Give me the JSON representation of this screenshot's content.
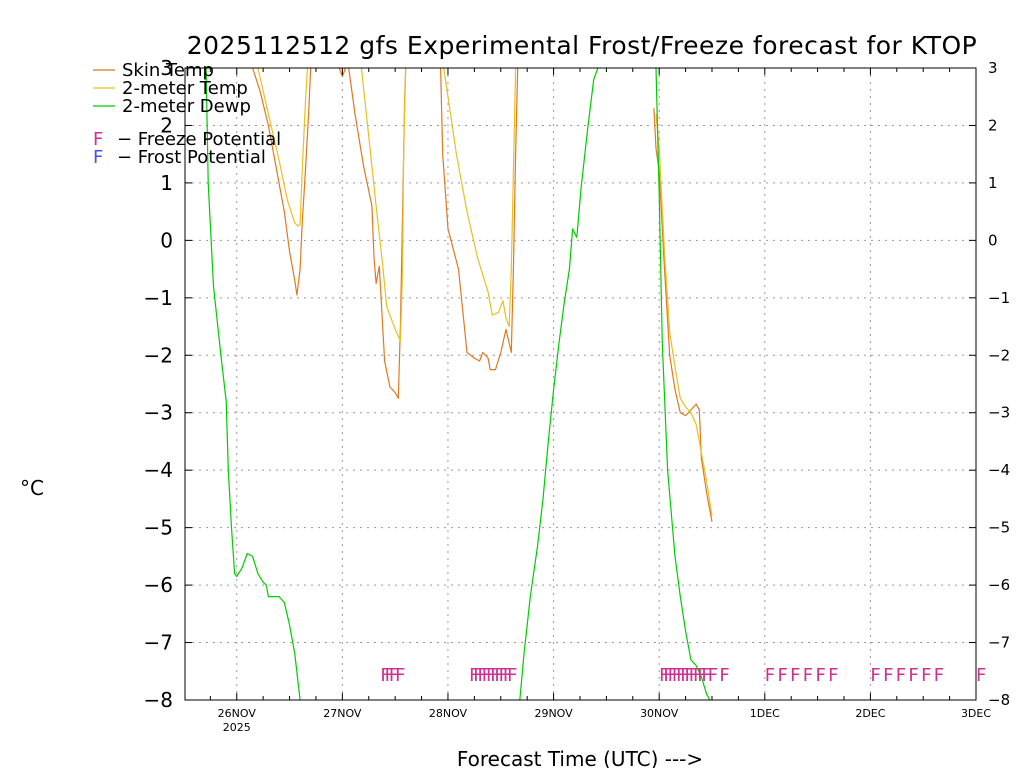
{
  "chart_data": {
    "type": "line",
    "title": "2025112512 gfs Experimental Frost/Freeze forecast for KTOP",
    "xlabel": "Forecast Time (UTC) --->",
    "ylabel": "°C",
    "ylim": [
      -8,
      3
    ],
    "xlim": [
      -0.49,
      7.0
    ],
    "y_ticks": [
      3,
      2,
      1,
      0,
      -1,
      -2,
      -3,
      -4,
      -5,
      -6,
      -7,
      -8
    ],
    "y_tick_labels": [
      "3",
      "2",
      "1",
      "0",
      "−1",
      "−2",
      "−3",
      "−4",
      "−5",
      "−6",
      "−7",
      "−8"
    ],
    "x_ticks": [
      {
        "x": 0,
        "label": "26NOV",
        "sublabel": "2025"
      },
      {
        "x": 1,
        "label": "27NOV"
      },
      {
        "x": 2,
        "label": "28NOV"
      },
      {
        "x": 3,
        "label": "29NOV"
      },
      {
        "x": 4,
        "label": "30NOV"
      },
      {
        "x": 5,
        "label": "1DEC"
      },
      {
        "x": 6,
        "label": "2DEC"
      },
      {
        "x": 7,
        "label": "3DEC"
      }
    ],
    "grid": true,
    "series": [
      {
        "name": "Skin Temp",
        "color": "#e07820",
        "segments": [
          [
            [
              0.15,
              3.0
            ],
            [
              0.22,
              2.6
            ],
            [
              0.3,
              2.0
            ],
            [
              0.38,
              1.2
            ],
            [
              0.45,
              0.5
            ],
            [
              0.5,
              -0.2
            ],
            [
              0.55,
              -0.7
            ],
            [
              0.57,
              -0.95
            ],
            [
              0.6,
              -0.5
            ],
            [
              0.62,
              0.3
            ],
            [
              0.65,
              1.2
            ],
            [
              0.68,
              2.2
            ],
            [
              0.7,
              3.0
            ]
          ],
          [
            [
              0.97,
              3.0
            ],
            [
              1.0,
              2.85
            ],
            [
              1.03,
              3.0
            ]
          ],
          [
            [
              1.06,
              3.0
            ],
            [
              1.12,
              2.2
            ],
            [
              1.2,
              1.3
            ],
            [
              1.28,
              0.6
            ],
            [
              1.3,
              -0.3
            ],
            [
              1.32,
              -0.75
            ],
            [
              1.35,
              -0.45
            ],
            [
              1.4,
              -2.1
            ],
            [
              1.45,
              -2.55
            ],
            [
              1.5,
              -2.65
            ],
            [
              1.53,
              -2.75
            ],
            [
              1.55,
              -1.5
            ],
            [
              1.57,
              0.5
            ],
            [
              1.59,
              2.5
            ],
            [
              1.6,
              3.0
            ]
          ],
          [
            [
              1.93,
              3.0
            ],
            [
              1.95,
              1.5
            ],
            [
              2.0,
              0.2
            ],
            [
              2.1,
              -0.5
            ],
            [
              2.18,
              -1.95
            ],
            [
              2.25,
              -2.05
            ],
            [
              2.3,
              -2.1
            ],
            [
              2.33,
              -1.95
            ],
            [
              2.38,
              -2.05
            ],
            [
              2.4,
              -2.25
            ],
            [
              2.45,
              -2.25
            ],
            [
              2.5,
              -1.95
            ],
            [
              2.55,
              -1.55
            ],
            [
              2.6,
              -1.95
            ],
            [
              2.62,
              -0.5
            ],
            [
              2.64,
              1.5
            ],
            [
              2.66,
              3.0
            ]
          ],
          [
            [
              3.95,
              2.3
            ],
            [
              3.97,
              1.6
            ],
            [
              4.0,
              1.2
            ],
            [
              4.05,
              -0.5
            ],
            [
              4.1,
              -2.0
            ],
            [
              4.15,
              -2.6
            ],
            [
              4.2,
              -3.0
            ],
            [
              4.25,
              -3.05
            ],
            [
              4.3,
              -2.95
            ],
            [
              4.35,
              -2.85
            ],
            [
              4.38,
              -2.95
            ],
            [
              4.4,
              -3.8
            ],
            [
              4.45,
              -4.4
            ],
            [
              4.5,
              -4.9
            ]
          ]
        ]
      },
      {
        "name": "2-meter Temp",
        "color": "#e8c020",
        "segments": [
          [
            [
              0.2,
              3.0
            ],
            [
              0.3,
              2.2
            ],
            [
              0.4,
              1.4
            ],
            [
              0.48,
              0.7
            ],
            [
              0.55,
              0.3
            ],
            [
              0.58,
              0.25
            ],
            [
              0.6,
              0.28
            ],
            [
              0.62,
              1.2
            ],
            [
              0.65,
              2.4
            ],
            [
              0.67,
              3.0
            ]
          ],
          [
            [
              1.18,
              3.0
            ],
            [
              1.25,
              1.8
            ],
            [
              1.32,
              0.6
            ],
            [
              1.38,
              -0.4
            ],
            [
              1.42,
              -1.15
            ],
            [
              1.5,
              -1.55
            ],
            [
              1.55,
              -1.75
            ],
            [
              1.57,
              -0.5
            ],
            [
              1.58,
              1.5
            ],
            [
              1.6,
              3.0
            ]
          ],
          [
            [
              1.96,
              3.0
            ],
            [
              2.0,
              2.5
            ],
            [
              2.08,
              1.5
            ],
            [
              2.18,
              0.5
            ],
            [
              2.28,
              -0.3
            ],
            [
              2.38,
              -0.9
            ],
            [
              2.42,
              -1.3
            ],
            [
              2.48,
              -1.25
            ],
            [
              2.52,
              -1.05
            ],
            [
              2.55,
              -1.35
            ],
            [
              2.58,
              -1.5
            ],
            [
              2.6,
              -0.5
            ],
            [
              2.62,
              1.2
            ],
            [
              2.64,
              3.0
            ]
          ],
          [
            [
              3.97,
              2.2
            ],
            [
              4.0,
              1.6
            ],
            [
              4.05,
              -0.2
            ],
            [
              4.1,
              -1.6
            ],
            [
              4.15,
              -2.2
            ],
            [
              4.2,
              -2.75
            ],
            [
              4.25,
              -2.9
            ],
            [
              4.3,
              -3.0
            ],
            [
              4.35,
              -3.2
            ],
            [
              4.4,
              -3.7
            ],
            [
              4.45,
              -4.2
            ],
            [
              4.5,
              -4.8
            ]
          ]
        ]
      },
      {
        "name": "2-meter Dewp",
        "color": "#00cc00",
        "segments": [
          [
            [
              -0.29,
              3.0
            ],
            [
              -0.27,
              1.0
            ],
            [
              -0.22,
              -0.8
            ],
            [
              -0.15,
              -2.0
            ],
            [
              -0.1,
              -2.8
            ],
            [
              -0.08,
              -4.0
            ],
            [
              -0.05,
              -5.0
            ],
            [
              -0.02,
              -5.8
            ],
            [
              0.0,
              -5.85
            ],
            [
              0.05,
              -5.7
            ],
            [
              0.1,
              -5.45
            ],
            [
              0.15,
              -5.5
            ],
            [
              0.2,
              -5.8
            ],
            [
              0.25,
              -5.95
            ],
            [
              0.28,
              -6.0
            ],
            [
              0.3,
              -6.2
            ],
            [
              0.35,
              -6.2
            ],
            [
              0.4,
              -6.2
            ],
            [
              0.45,
              -6.3
            ],
            [
              0.5,
              -6.7
            ],
            [
              0.55,
              -7.2
            ],
            [
              0.6,
              -8.0
            ]
          ],
          [
            [
              2.68,
              -8.0
            ],
            [
              2.72,
              -7.2
            ],
            [
              2.78,
              -6.2
            ],
            [
              2.85,
              -5.3
            ],
            [
              2.9,
              -4.5
            ],
            [
              2.95,
              -3.5
            ],
            [
              3.0,
              -2.6
            ],
            [
              3.05,
              -1.8
            ],
            [
              3.1,
              -1.1
            ],
            [
              3.15,
              -0.5
            ],
            [
              3.18,
              0.2
            ],
            [
              3.22,
              0.05
            ],
            [
              3.26,
              0.9
            ],
            [
              3.32,
              1.9
            ],
            [
              3.38,
              2.8
            ],
            [
              3.42,
              3.0
            ]
          ],
          [
            [
              3.97,
              3.0
            ],
            [
              4.0,
              0.8
            ],
            [
              4.03,
              -1.8
            ],
            [
              4.08,
              -4.0
            ],
            [
              4.15,
              -5.5
            ],
            [
              4.2,
              -6.2
            ],
            [
              4.25,
              -6.8
            ],
            [
              4.3,
              -7.3
            ],
            [
              4.35,
              -7.4
            ],
            [
              4.4,
              -7.6
            ],
            [
              4.45,
              -7.9
            ],
            [
              4.48,
              -8.0
            ]
          ]
        ]
      }
    ],
    "markers": {
      "symbol": "F",
      "color": "#d03090",
      "y": -7.55,
      "x": [
        1.36,
        1.4,
        1.44,
        1.5,
        2.2,
        2.24,
        2.28,
        2.32,
        2.36,
        2.4,
        2.44,
        2.48,
        2.52,
        2.56,
        4.0,
        4.04,
        4.08,
        4.12,
        4.16,
        4.2,
        4.24,
        4.28,
        4.32,
        4.36,
        4.4,
        4.46,
        4.57,
        5.0,
        5.12,
        5.24,
        5.36,
        5.48,
        5.6,
        6.0,
        6.12,
        6.24,
        6.36,
        6.48,
        6.6,
        7.0
      ]
    },
    "legend": {
      "placement": "top-left",
      "entries": [
        {
          "label": "Skin Temp",
          "color": "#e07820",
          "kind": "line"
        },
        {
          "label": "2-meter Temp",
          "color": "#e8c020",
          "kind": "line"
        },
        {
          "label": "2-meter Dewp",
          "color": "#00cc00",
          "kind": "line"
        },
        {
          "symbol": "F",
          "label": "− Freeze Potential",
          "color": "#d03090",
          "kind": "symbol"
        },
        {
          "symbol": "F",
          "label": "− Frost Potential",
          "color": "#4a50e8",
          "kind": "symbol"
        }
      ]
    }
  }
}
